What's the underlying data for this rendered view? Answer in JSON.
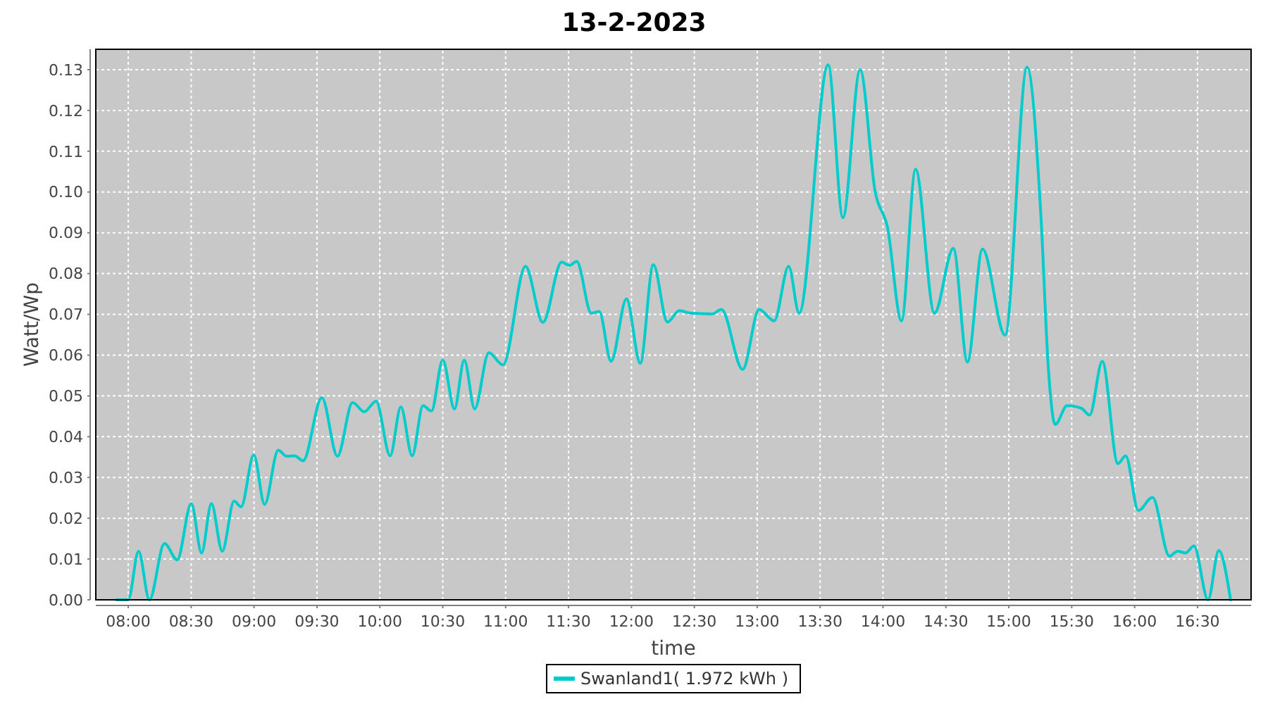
{
  "chart_data": {
    "type": "line",
    "title": "13-2-2023",
    "xlabel": "time",
    "ylabel": "Watt/Wp",
    "xlim": [
      7.742,
      16.926
    ],
    "xticks": [
      {
        "value": 8,
        "label": "08:00"
      },
      {
        "value": 8.5,
        "label": "08:30"
      },
      {
        "value": 9,
        "label": "09:00"
      },
      {
        "value": 9.5,
        "label": "09:30"
      },
      {
        "value": 10,
        "label": "10:00"
      },
      {
        "value": 10.5,
        "label": "10:30"
      },
      {
        "value": 11,
        "label": "11:00"
      },
      {
        "value": 11.5,
        "label": "11:30"
      },
      {
        "value": 12,
        "label": "12:00"
      },
      {
        "value": 12.5,
        "label": "12:30"
      },
      {
        "value": 13,
        "label": "13:00"
      },
      {
        "value": 13.5,
        "label": "13:30"
      },
      {
        "value": 14,
        "label": "14:00"
      },
      {
        "value": 14.5,
        "label": "14:30"
      },
      {
        "value": 15,
        "label": "15:00"
      },
      {
        "value": 15.5,
        "label": "15:30"
      },
      {
        "value": 16,
        "label": "16:00"
      },
      {
        "value": 16.5,
        "label": "16:30"
      }
    ],
    "ylim": [
      0,
      0.135
    ],
    "yticks": [
      {
        "value": 0,
        "label": "0.00"
      },
      {
        "value": 0.01,
        "label": "0.01"
      },
      {
        "value": 0.02,
        "label": "0.02"
      },
      {
        "value": 0.03,
        "label": "0.03"
      },
      {
        "value": 0.04,
        "label": "0.04"
      },
      {
        "value": 0.05,
        "label": "0.05"
      },
      {
        "value": 0.06,
        "label": "0.06"
      },
      {
        "value": 0.07,
        "label": "0.07"
      },
      {
        "value": 0.08,
        "label": "0.08"
      },
      {
        "value": 0.09,
        "label": "0.09"
      },
      {
        "value": 0.1,
        "label": "0.10"
      },
      {
        "value": 0.11,
        "label": "0.11"
      },
      {
        "value": 0.12,
        "label": "0.12"
      },
      {
        "value": 0.13,
        "label": "0.13"
      }
    ],
    "grid": true,
    "legend": "bottom",
    "line_style": "solid",
    "series": [
      {
        "name": "Swanland1( 1.972 kWh )",
        "color": "#00cccc",
        "x": [
          7.907,
          8.0,
          8.082,
          8.168,
          8.288,
          8.389,
          8.501,
          8.583,
          8.661,
          8.747,
          8.841,
          8.897,
          8.998,
          9.084,
          9.192,
          9.259,
          9.323,
          9.39,
          9.539,
          9.663,
          9.783,
          9.876,
          9.97,
          10.082,
          10.167,
          10.257,
          10.343,
          10.41,
          10.5,
          10.593,
          10.671,
          10.754,
          10.866,
          10.979,
          11.158,
          11.296,
          11.445,
          11.509,
          11.565,
          11.681,
          11.744,
          11.838,
          11.961,
          12.07,
          12.174,
          12.286,
          12.38,
          12.473,
          12.641,
          12.716,
          12.884,
          13.015,
          13.135,
          13.25,
          13.333,
          13.564,
          13.681,
          13.818,
          13.938,
          14.035,
          14.147,
          14.259,
          14.409,
          14.559,
          14.671,
          14.791,
          14.97,
          15.145,
          15.257,
          15.313,
          15.369,
          15.463,
          15.575,
          15.643,
          15.743,
          15.867,
          15.929,
          16.03,
          16.142,
          16.277,
          16.341,
          16.405,
          16.472,
          16.584,
          16.669,
          16.763
        ],
        "values": [
          0,
          0,
          0.0119,
          0,
          0.0138,
          0.0098,
          0.0236,
          0.0115,
          0.0236,
          0.0119,
          0.0242,
          0.0228,
          0.0355,
          0.0234,
          0.0367,
          0.0352,
          0.0353,
          0.0341,
          0.0496,
          0.0352,
          0.0484,
          0.0461,
          0.0487,
          0.0353,
          0.0473,
          0.0353,
          0.0476,
          0.0463,
          0.0588,
          0.0468,
          0.0588,
          0.0468,
          0.0606,
          0.0576,
          0.0818,
          0.068,
          0.0828,
          0.082,
          0.083,
          0.0703,
          0.0707,
          0.0585,
          0.0738,
          0.058,
          0.0822,
          0.0681,
          0.0709,
          0.0703,
          0.0701,
          0.0712,
          0.0565,
          0.0712,
          0.0684,
          0.0818,
          0.0703,
          0.1312,
          0.0937,
          0.13,
          0.1,
          0.0914,
          0.0684,
          0.1056,
          0.0703,
          0.0862,
          0.0583,
          0.086,
          0.0649,
          0.1306,
          0.0931,
          0.0574,
          0.043,
          0.0476,
          0.047,
          0.0453,
          0.0585,
          0.0334,
          0.0353,
          0.0219,
          0.0251,
          0.0107,
          0.0119,
          0.0115,
          0.0132,
          0,
          0.0121,
          0
        ]
      }
    ]
  }
}
